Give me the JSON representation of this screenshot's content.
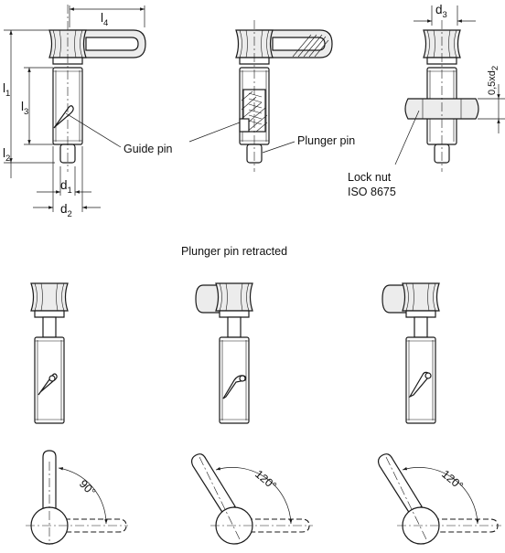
{
  "dimensions": {
    "l4_main": "l",
    "l4_sub": "4",
    "l1_main": "l",
    "l1_sub": "1",
    "l3_main": "l",
    "l3_sub": "3",
    "l2_main": "l",
    "l2_sub": "2",
    "d1_main": "d",
    "d1_sub": "1",
    "d2_main": "d",
    "d2_sub": "2",
    "d3_main": "d",
    "d3_sub": "3",
    "thread_main": "0,5xd",
    "thread_sub": "2"
  },
  "labels": {
    "guide_pin": "Guide pin",
    "plunger_pin": "Plunger pin",
    "lock_nut_line1": "Lock nut",
    "lock_nut_line2": "ISO 8675",
    "section_title": "Plunger pin retracted"
  },
  "angles": {
    "a1": "90°",
    "a2": "120°",
    "a3": "120°"
  }
}
